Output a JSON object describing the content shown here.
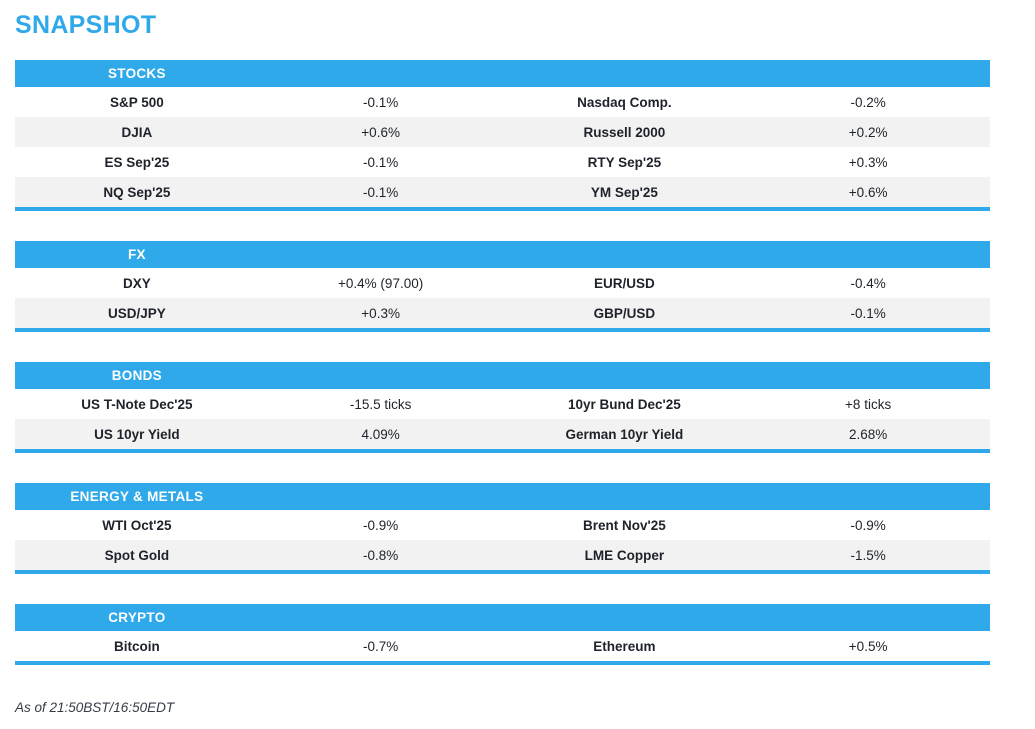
{
  "page": {
    "title": "SNAPSHOT",
    "footer": "As of 21:50BST/16:50EDT"
  },
  "colors": {
    "accent_blue": "#2fa9e9",
    "row_alt_gray": "#f2f2f2",
    "text_dark": "#1e222a",
    "header_text": "#ffffff"
  },
  "sections": [
    {
      "title": "STOCKS",
      "rows": [
        {
          "label1": "S&P 500",
          "value1": "-0.1%",
          "label2": "Nasdaq Comp.",
          "value2": "-0.2%"
        },
        {
          "label1": "DJIA",
          "value1": "+0.6%",
          "label2": "Russell 2000",
          "value2": "+0.2%"
        },
        {
          "label1": "ES Sep'25",
          "value1": "-0.1%",
          "label2": "RTY Sep'25",
          "value2": "+0.3%"
        },
        {
          "label1": "NQ Sep'25",
          "value1": "-0.1%",
          "label2": "YM Sep'25",
          "value2": "+0.6%"
        }
      ]
    },
    {
      "title": "FX",
      "rows": [
        {
          "label1": "DXY",
          "value1": "+0.4% (97.00)",
          "label2": "EUR/USD",
          "value2": "-0.4%"
        },
        {
          "label1": "USD/JPY",
          "value1": "+0.3%",
          "label2": "GBP/USD",
          "value2": "-0.1%"
        }
      ]
    },
    {
      "title": "BONDS",
      "rows": [
        {
          "label1": "US T-Note Dec'25",
          "value1": "-15.5 ticks",
          "label2": "10yr Bund Dec'25",
          "value2": "+8 ticks"
        },
        {
          "label1": "US 10yr Yield",
          "value1": "4.09%",
          "label2": "German 10yr Yield",
          "value2": "2.68%"
        }
      ]
    },
    {
      "title": "ENERGY & METALS",
      "rows": [
        {
          "label1": "WTI Oct'25",
          "value1": "-0.9%",
          "label2": "Brent Nov'25",
          "value2": "-0.9%"
        },
        {
          "label1": "Spot Gold",
          "value1": "-0.8%",
          "label2": "LME Copper",
          "value2": "-1.5%"
        }
      ]
    },
    {
      "title": "CRYPTO",
      "rows": [
        {
          "label1": "Bitcoin",
          "value1": "-0.7%",
          "label2": "Ethereum",
          "value2": "+0.5%"
        }
      ]
    }
  ]
}
